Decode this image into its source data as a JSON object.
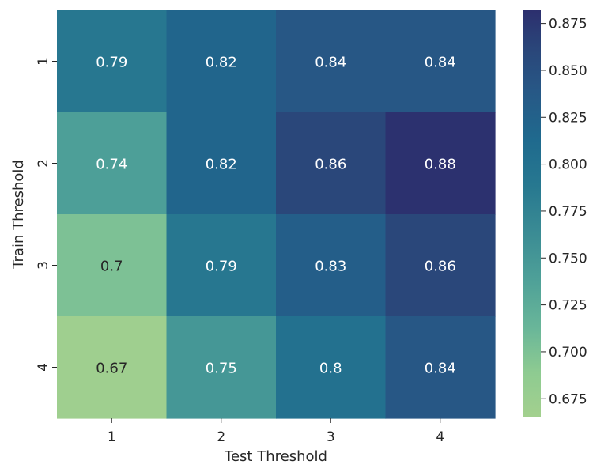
{
  "chart_data": {
    "type": "heatmap",
    "title": "",
    "xlabel": "Test Threshold",
    "ylabel": "Train Threshold",
    "x_categories": [
      "1",
      "2",
      "3",
      "4"
    ],
    "y_categories": [
      "1",
      "2",
      "3",
      "4"
    ],
    "values": [
      [
        0.79,
        0.82,
        0.84,
        0.84
      ],
      [
        0.74,
        0.82,
        0.86,
        0.88
      ],
      [
        0.7,
        0.79,
        0.83,
        0.86
      ],
      [
        0.67,
        0.75,
        0.8,
        0.84
      ]
    ],
    "cell_labels": [
      [
        "0.79",
        "0.82",
        "0.84",
        "0.84"
      ],
      [
        "0.74",
        "0.82",
        "0.86",
        "0.88"
      ],
      [
        "0.7",
        "0.79",
        "0.83",
        "0.86"
      ],
      [
        "0.67",
        "0.75",
        "0.8",
        "0.84"
      ]
    ],
    "colormap": "crest",
    "colorbar": {
      "vmin": 0.665,
      "vmax": 0.882,
      "ticks": [
        0.675,
        0.7,
        0.725,
        0.75,
        0.775,
        0.8,
        0.825,
        0.85,
        0.875
      ],
      "tick_labels": [
        "0.675",
        "0.700",
        "0.725",
        "0.750",
        "0.775",
        "0.800",
        "0.825",
        "0.850",
        "0.875"
      ]
    },
    "colors": {
      "low": "#a3d08e",
      "high": "#2c2f6e",
      "text_dark": "#262626",
      "text_light": "#ffffff"
    }
  }
}
